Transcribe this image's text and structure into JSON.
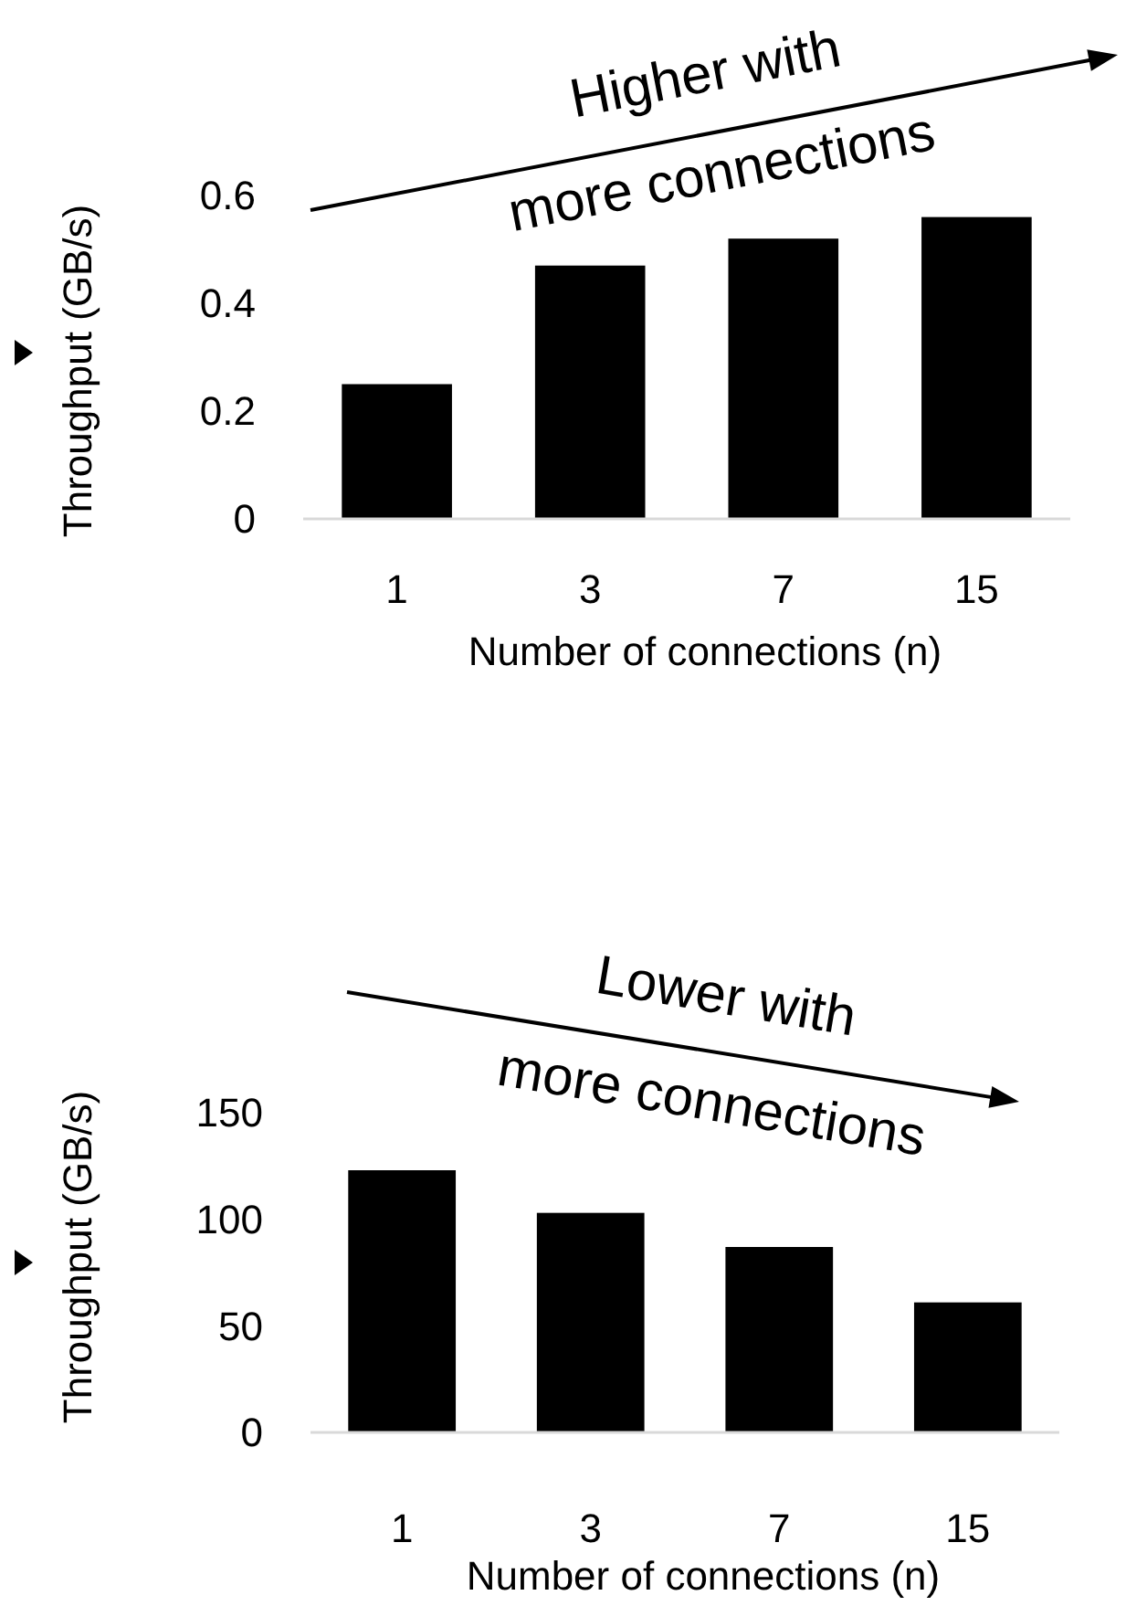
{
  "chart_data": [
    {
      "type": "bar",
      "ylabel": "Throughput (GB/s)",
      "xlabel": "Number of connections (n)",
      "categories": [
        "1",
        "3",
        "7",
        "15"
      ],
      "values": [
        0.25,
        0.47,
        0.52,
        0.56
      ],
      "color": "#000000",
      "ylim": [
        0,
        0.6
      ],
      "yticks": [
        0,
        0.2,
        0.4,
        0.6
      ],
      "grid": false,
      "annotations": [
        "Higher with",
        "more connections"
      ]
    },
    {
      "type": "bar",
      "ylabel": "Throughput (GB/s)",
      "xlabel": "Number of connections (n)",
      "categories": [
        "1",
        "3",
        "7",
        "15"
      ],
      "values": [
        123,
        103,
        87,
        61
      ],
      "color": "#000000",
      "ylim": [
        0,
        150
      ],
      "yticks": [
        0,
        50,
        100,
        150
      ],
      "grid": false,
      "annotations": [
        "Lower with",
        "more connections"
      ]
    }
  ]
}
